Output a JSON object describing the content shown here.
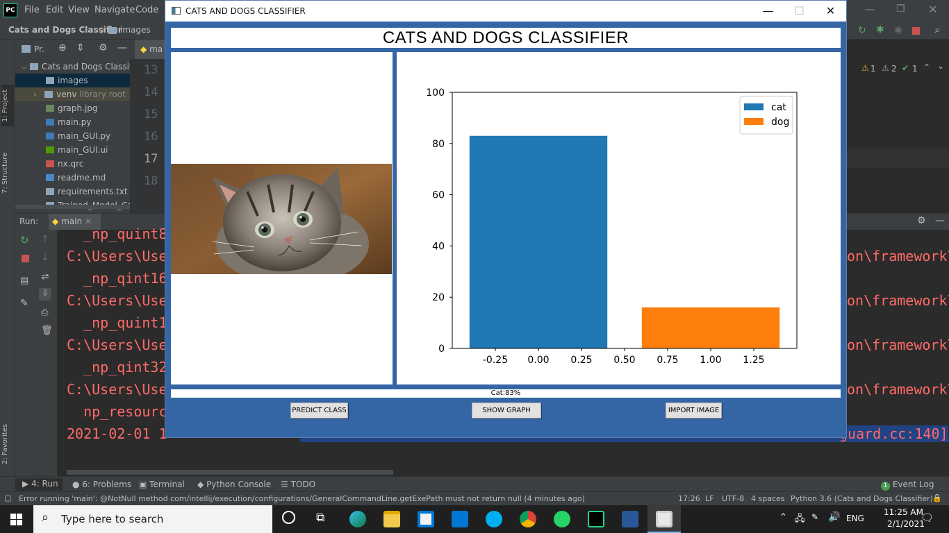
{
  "ide": {
    "logo": "PC",
    "menu": [
      "File",
      "Edit",
      "View",
      "Navigate",
      "Code"
    ],
    "breadcrumb": [
      "Cats and Dogs Classifier",
      "images"
    ],
    "project_tab": "Pr.",
    "editor_tab": "ma",
    "tree": [
      {
        "label": "Cats and Dogs Classifie",
        "icon": "folder-icon",
        "selected": false
      },
      {
        "label": "images",
        "icon": "folder-icon",
        "selected": true
      },
      {
        "label": "venv",
        "suffix": "library root",
        "icon": "folder-icon",
        "selected": false
      },
      {
        "label": "graph.jpg",
        "icon": "image-file-icon"
      },
      {
        "label": "main.py",
        "icon": "python-file-icon"
      },
      {
        "label": "main_GUI.py",
        "icon": "python-file-icon"
      },
      {
        "label": "main_GUI.ui",
        "icon": "ui-file-icon"
      },
      {
        "label": "nx.qrc",
        "icon": "qrc-file-icon"
      },
      {
        "label": "readme.md",
        "icon": "markdown-file-icon"
      },
      {
        "label": "requirements.txt",
        "icon": "text-file-icon"
      },
      {
        "label": "Trained_Model_Cat&",
        "icon": "file-icon"
      }
    ],
    "line_numbers": [
      "13",
      "14",
      "15",
      "16",
      "17",
      "18"
    ],
    "inspections": {
      "warnings": "1",
      "weak": "2",
      "ok": "1"
    },
    "run_label": "Run:",
    "run_config": "main",
    "console_lines": [
      "  _np_quint8",
      "C:\\Users\\Use",
      "  _np_qint16",
      "C:\\Users\\Use",
      "  _np_quint1",
      "C:\\Users\\Use",
      "  _np_qint32",
      "C:\\Users\\Use",
      "  np_resourc",
      "2021-02-01 1"
    ],
    "console_right": [
      "on\\framework\\",
      "on\\framework\\",
      "on\\framework\\",
      "on\\framework\\"
    ],
    "console_right_last": "guard.cc:140]",
    "side_tabs": [
      "1: Project",
      "7: Structure",
      "2: Favorites"
    ],
    "bottom_tabs": [
      "4: Run",
      "6: Problems",
      "Terminal",
      "Python Console",
      "TODO"
    ],
    "event_log": "Event Log",
    "event_count": "1",
    "status_message": "Error running 'main': @NotNull method com/intellij/execution/configurations/GeneralCommandLine.getExePath must not return null (4 minutes ago)",
    "status_right": [
      "17:26",
      "LF",
      "UTF-8",
      "4 spaces",
      "Python 3.6 (Cats and Dogs Classifier)"
    ]
  },
  "app": {
    "window_title": "CATS AND DOGS CLASSIFIER",
    "header": "CATS AND DOGS CLASSIFIER",
    "result": "Cat:83%",
    "buttons": {
      "predict": "PREDICT CLASS",
      "graph": "SHOW GRAPH",
      "import": "IMPORT IMAGE"
    }
  },
  "chart_data": {
    "type": "bar",
    "title": "",
    "xlabel": "",
    "ylabel": "",
    "xlim": [
      -0.5,
      1.5
    ],
    "ylim": [
      0,
      100
    ],
    "xticks": [
      "-0.25",
      "0.00",
      "0.25",
      "0.50",
      "0.75",
      "1.00",
      "1.25"
    ],
    "xtick_values": [
      -0.25,
      0,
      0.25,
      0.5,
      0.75,
      1.0,
      1.25
    ],
    "yticks": [
      "0",
      "20",
      "40",
      "60",
      "80",
      "100"
    ],
    "ytick_values": [
      0,
      20,
      40,
      60,
      80,
      100
    ],
    "bar_width": 0.8,
    "series": [
      {
        "name": "cat",
        "x": 0,
        "value": 83,
        "color": "#1f77b4"
      },
      {
        "name": "dog",
        "x": 1,
        "value": 16,
        "color": "#ff7f0e"
      }
    ],
    "legend": "top-right",
    "grid": false
  },
  "taskbar": {
    "search_placeholder": "Type here to search",
    "language": "ENG",
    "time": "11:25 AM",
    "date": "2/1/2021"
  }
}
